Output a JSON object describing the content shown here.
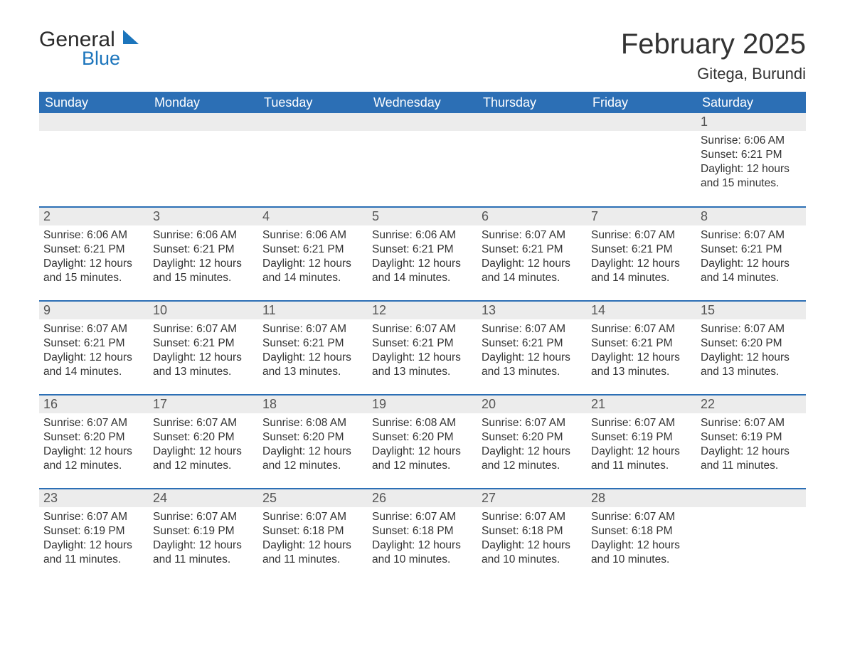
{
  "logo": {
    "text_general": "General",
    "text_blue": "Blue",
    "sail_color": "#1c75bc",
    "text_color_dark": "#2a2a2a"
  },
  "title": "February 2025",
  "location": "Gitega, Burundi",
  "colors": {
    "header_bg": "#2c6fb5",
    "header_text": "#ffffff",
    "daynum_bg": "#ececec",
    "row_divider": "#2c6fb5",
    "body_text": "#333333",
    "background": "#ffffff"
  },
  "typography": {
    "title_fontsize": 40,
    "location_fontsize": 22,
    "header_fontsize": 18,
    "daynum_fontsize": 18,
    "body_fontsize": 15.5,
    "font_family": "Arial"
  },
  "day_headers": [
    "Sunday",
    "Monday",
    "Tuesday",
    "Wednesday",
    "Thursday",
    "Friday",
    "Saturday"
  ],
  "labels": {
    "sunrise": "Sunrise: ",
    "sunset": "Sunset: ",
    "daylight_prefix": "Daylight: ",
    "daylight_hours_word": " hours",
    "daylight_and_word": "and ",
    "daylight_minutes_word": " minutes."
  },
  "weeks": [
    [
      {
        "day": null
      },
      {
        "day": null
      },
      {
        "day": null
      },
      {
        "day": null
      },
      {
        "day": null
      },
      {
        "day": null
      },
      {
        "day": 1,
        "sunrise": "6:06 AM",
        "sunset": "6:21 PM",
        "daylight_hours": 12,
        "daylight_minutes": 15
      }
    ],
    [
      {
        "day": 2,
        "sunrise": "6:06 AM",
        "sunset": "6:21 PM",
        "daylight_hours": 12,
        "daylight_minutes": 15
      },
      {
        "day": 3,
        "sunrise": "6:06 AM",
        "sunset": "6:21 PM",
        "daylight_hours": 12,
        "daylight_minutes": 15
      },
      {
        "day": 4,
        "sunrise": "6:06 AM",
        "sunset": "6:21 PM",
        "daylight_hours": 12,
        "daylight_minutes": 14
      },
      {
        "day": 5,
        "sunrise": "6:06 AM",
        "sunset": "6:21 PM",
        "daylight_hours": 12,
        "daylight_minutes": 14
      },
      {
        "day": 6,
        "sunrise": "6:07 AM",
        "sunset": "6:21 PM",
        "daylight_hours": 12,
        "daylight_minutes": 14
      },
      {
        "day": 7,
        "sunrise": "6:07 AM",
        "sunset": "6:21 PM",
        "daylight_hours": 12,
        "daylight_minutes": 14
      },
      {
        "day": 8,
        "sunrise": "6:07 AM",
        "sunset": "6:21 PM",
        "daylight_hours": 12,
        "daylight_minutes": 14
      }
    ],
    [
      {
        "day": 9,
        "sunrise": "6:07 AM",
        "sunset": "6:21 PM",
        "daylight_hours": 12,
        "daylight_minutes": 14
      },
      {
        "day": 10,
        "sunrise": "6:07 AM",
        "sunset": "6:21 PM",
        "daylight_hours": 12,
        "daylight_minutes": 13
      },
      {
        "day": 11,
        "sunrise": "6:07 AM",
        "sunset": "6:21 PM",
        "daylight_hours": 12,
        "daylight_minutes": 13
      },
      {
        "day": 12,
        "sunrise": "6:07 AM",
        "sunset": "6:21 PM",
        "daylight_hours": 12,
        "daylight_minutes": 13
      },
      {
        "day": 13,
        "sunrise": "6:07 AM",
        "sunset": "6:21 PM",
        "daylight_hours": 12,
        "daylight_minutes": 13
      },
      {
        "day": 14,
        "sunrise": "6:07 AM",
        "sunset": "6:21 PM",
        "daylight_hours": 12,
        "daylight_minutes": 13
      },
      {
        "day": 15,
        "sunrise": "6:07 AM",
        "sunset": "6:20 PM",
        "daylight_hours": 12,
        "daylight_minutes": 13
      }
    ],
    [
      {
        "day": 16,
        "sunrise": "6:07 AM",
        "sunset": "6:20 PM",
        "daylight_hours": 12,
        "daylight_minutes": 12
      },
      {
        "day": 17,
        "sunrise": "6:07 AM",
        "sunset": "6:20 PM",
        "daylight_hours": 12,
        "daylight_minutes": 12
      },
      {
        "day": 18,
        "sunrise": "6:08 AM",
        "sunset": "6:20 PM",
        "daylight_hours": 12,
        "daylight_minutes": 12
      },
      {
        "day": 19,
        "sunrise": "6:08 AM",
        "sunset": "6:20 PM",
        "daylight_hours": 12,
        "daylight_minutes": 12
      },
      {
        "day": 20,
        "sunrise": "6:07 AM",
        "sunset": "6:20 PM",
        "daylight_hours": 12,
        "daylight_minutes": 12
      },
      {
        "day": 21,
        "sunrise": "6:07 AM",
        "sunset": "6:19 PM",
        "daylight_hours": 12,
        "daylight_minutes": 11
      },
      {
        "day": 22,
        "sunrise": "6:07 AM",
        "sunset": "6:19 PM",
        "daylight_hours": 12,
        "daylight_minutes": 11
      }
    ],
    [
      {
        "day": 23,
        "sunrise": "6:07 AM",
        "sunset": "6:19 PM",
        "daylight_hours": 12,
        "daylight_minutes": 11
      },
      {
        "day": 24,
        "sunrise": "6:07 AM",
        "sunset": "6:19 PM",
        "daylight_hours": 12,
        "daylight_minutes": 11
      },
      {
        "day": 25,
        "sunrise": "6:07 AM",
        "sunset": "6:18 PM",
        "daylight_hours": 12,
        "daylight_minutes": 11
      },
      {
        "day": 26,
        "sunrise": "6:07 AM",
        "sunset": "6:18 PM",
        "daylight_hours": 12,
        "daylight_minutes": 10
      },
      {
        "day": 27,
        "sunrise": "6:07 AM",
        "sunset": "6:18 PM",
        "daylight_hours": 12,
        "daylight_minutes": 10
      },
      {
        "day": 28,
        "sunrise": "6:07 AM",
        "sunset": "6:18 PM",
        "daylight_hours": 12,
        "daylight_minutes": 10
      },
      {
        "day": null
      }
    ]
  ]
}
